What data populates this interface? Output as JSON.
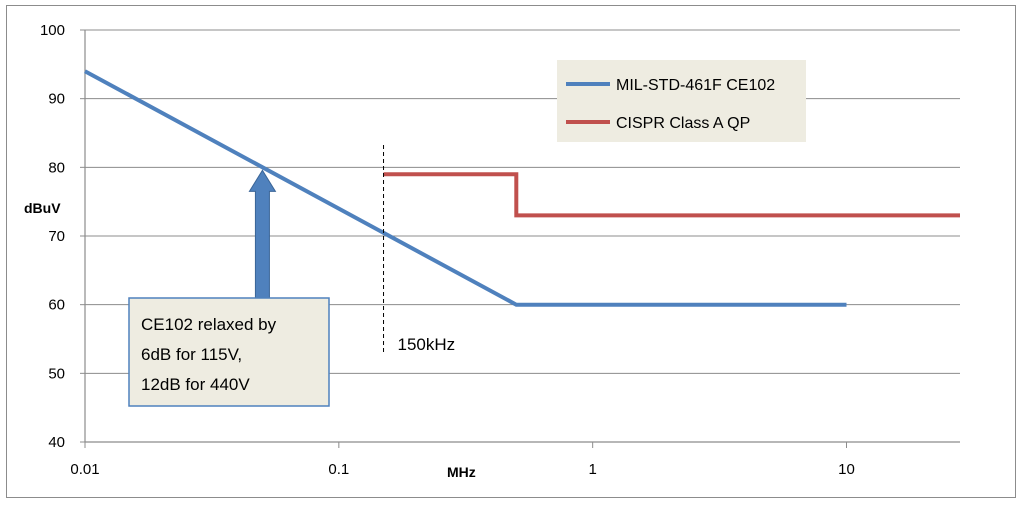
{
  "chart_data": {
    "type": "line",
    "title": "",
    "xlabel": "MHz",
    "ylabel": "dBuV",
    "x_scale": "log",
    "xlim": [
      0.01,
      28
    ],
    "ylim": [
      40,
      100
    ],
    "x_ticks": [
      0.01,
      0.1,
      1,
      10
    ],
    "x_tick_labels": [
      "0.01",
      "0.1",
      "1",
      "10"
    ],
    "y_ticks": [
      40,
      50,
      60,
      70,
      80,
      90,
      100
    ],
    "y_tick_labels": [
      "40",
      "50",
      "60",
      "70",
      "80",
      "90",
      "100"
    ],
    "grid": "horizontal",
    "legend_position": "top-right",
    "series": [
      {
        "name": "MIL-STD-461F CE102",
        "color": "#4f81bd",
        "points": [
          [
            0.01,
            94
          ],
          [
            0.5,
            60
          ],
          [
            10,
            60
          ]
        ]
      },
      {
        "name": "CISPR Class A QP",
        "color": "#c0504d",
        "points": [
          [
            0.15,
            79
          ],
          [
            0.5,
            79
          ],
          [
            0.5,
            73
          ],
          [
            28,
            73
          ]
        ]
      }
    ],
    "annotations": {
      "marker": {
        "label": "150kHz",
        "x": 0.15
      },
      "callout": {
        "lines": [
          "CE102 relaxed by",
          "6dB for 115V,",
          "12dB for 440V"
        ],
        "arrow_to": {
          "x": 0.05,
          "y": 80
        },
        "fill": "#eeece1",
        "arrow_color": "#4f81bd"
      }
    }
  }
}
